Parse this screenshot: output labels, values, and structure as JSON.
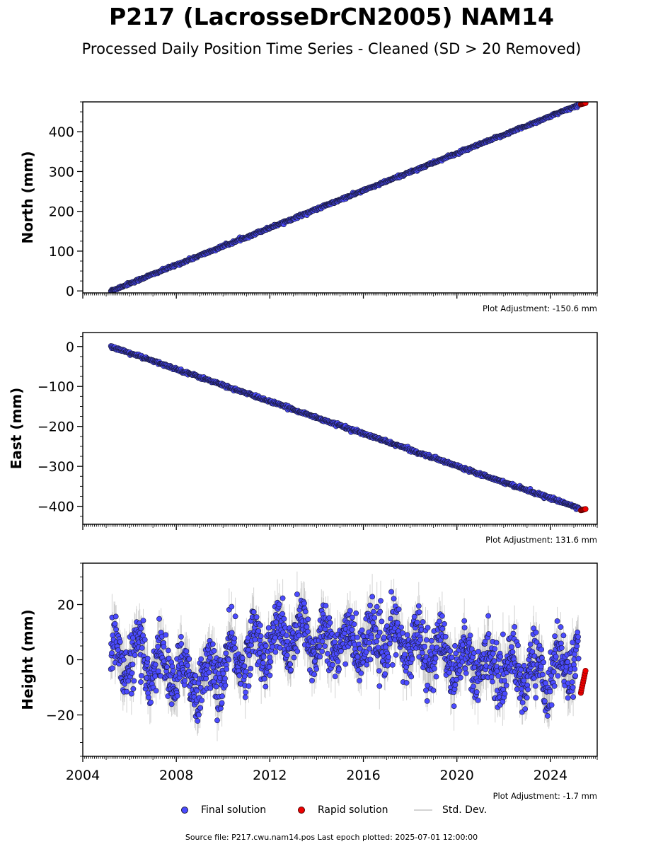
{
  "page": {
    "title": "P217 (LacrosseDrCN2005) NAM14",
    "subtitle": "Processed Daily Position Time Series - Cleaned (SD > 20 Removed)",
    "source_text": "Source file: P217.cwu.nam14.pos  Last epoch plotted: 2025-07-01 12:00:00"
  },
  "legend": {
    "final_label": "Final solution",
    "rapid_label": "Rapid solution",
    "std_label": "Std. Dev."
  },
  "colors": {
    "final": "#4b4bff",
    "rapid": "#ee0000",
    "marker_edge": "#1a1a3a",
    "std_dev": "#b0b0b0"
  },
  "chart_data": [
    {
      "type": "scatter",
      "ylabel": "North (mm)",
      "ylim": [
        -5,
        475
      ],
      "yticks": [
        0,
        100,
        200,
        300,
        400
      ],
      "ytick_labels": [
        "0",
        "100",
        "200",
        "300",
        "400"
      ],
      "xlim": [
        2004,
        2026
      ],
      "show_xtick_labels": false,
      "adjustment": "Plot Adjustment: -150.6 mm",
      "trend": {
        "start": [
          2005.2,
          0
        ],
        "end": [
          2025.25,
          468
        ],
        "noise": 1.6
      },
      "rapid": {
        "start": 2025.3,
        "end": 2025.5,
        "values": [
          469,
          472
        ],
        "count": 8
      }
    },
    {
      "type": "scatter",
      "ylabel": "East (mm)",
      "ylim": [
        -445,
        35
      ],
      "yticks": [
        -400,
        -300,
        -200,
        -100,
        0
      ],
      "ytick_labels": [
        "−400",
        "−300",
        "−200",
        "−100",
        "0"
      ],
      "xlim": [
        2004,
        2026
      ],
      "show_xtick_labels": false,
      "adjustment": "Plot Adjustment: 131.6 mm",
      "trend": {
        "start": [
          2005.2,
          0
        ],
        "end": [
          2025.25,
          -405
        ],
        "noise": 1.8
      },
      "rapid": {
        "start": 2025.3,
        "end": 2025.5,
        "values": [
          -410,
          -407
        ],
        "count": 8
      }
    },
    {
      "type": "scatter",
      "ylabel": "Height (mm)",
      "ylim": [
        -35,
        35
      ],
      "yticks": [
        -20,
        0,
        20
      ],
      "ytick_labels": [
        "−20",
        "0",
        "20"
      ],
      "xlim": [
        2004,
        2026
      ],
      "xticks": [
        2004,
        2008,
        2012,
        2016,
        2020,
        2024
      ],
      "xtick_labels": [
        "2004",
        "2008",
        "2012",
        "2016",
        "2020",
        "2024"
      ],
      "show_xtick_labels": true,
      "adjustment": "Plot Adjustment: -1.7 mm",
      "baseline": {
        "x": [
          2005.2,
          2007,
          2009,
          2011,
          2013,
          2015,
          2017,
          2018.5,
          2020,
          2022,
          2024,
          2025.2
        ],
        "y": [
          1,
          -1,
          -8,
          3,
          9,
          6,
          7,
          5,
          0,
          -3,
          -5,
          2
        ]
      },
      "amplitude": 6,
      "noise": 5,
      "rapid": {
        "start": 2025.3,
        "end": 2025.5,
        "values": [
          -12,
          -4
        ],
        "count": 10
      }
    }
  ]
}
